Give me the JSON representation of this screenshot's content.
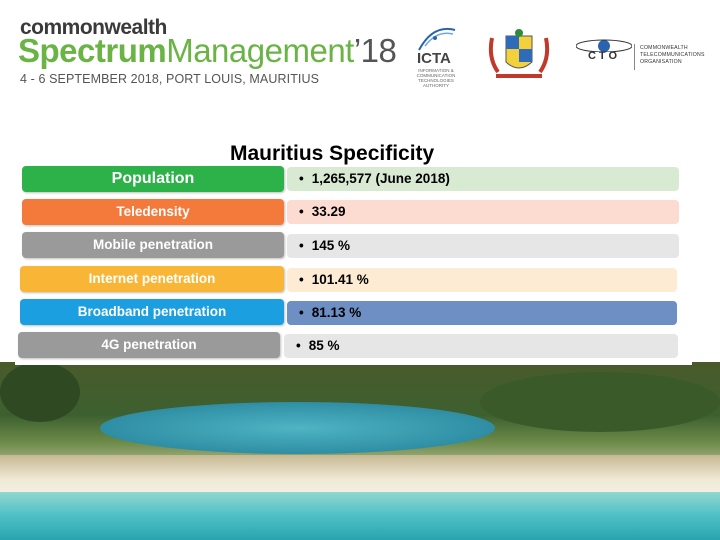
{
  "header": {
    "brand_top": "commonwealth",
    "brand_main_bold": "Spectrum",
    "brand_main_light": "Management",
    "brand_year": "’18",
    "subtitle": "4 - 6 SEPTEMBER 2018, PORT LOUIS, MAURITIUS",
    "icta_logo_text": "ICTA",
    "icta_logo_sub": "INFORMATION & COMMUNICATION TECHNOLOGIES AUTHORITY",
    "cto_logo_text": "CTO",
    "cto_name": "COMMONWEALTH TELECOMMUNICATIONS ORGANISATION"
  },
  "slide": {
    "title": "Mauritius Specificity",
    "bullet_char": "•",
    "rows": [
      {
        "label": "Population",
        "value": "1,265,577 (June 2018)",
        "label_color": "#2db24a",
        "value_bg": "#d9ead3"
      },
      {
        "label": "Teledensity",
        "value": "33.29",
        "label_color": "#f47a3c",
        "value_bg": "#fcdcd1"
      },
      {
        "label": "Mobile penetration",
        "value": "145 %",
        "label_color": "#9a9a9a",
        "value_bg": "#e6e6e6"
      },
      {
        "label": "Internet penetration",
        "value": "101.41 %",
        "label_color": "#f9b535",
        "value_bg": "#fdebd3"
      },
      {
        "label": "Broadband penetration",
        "value": "81.13 %",
        "label_color": "#1b9fe0",
        "value_bg": "#6d8fc4"
      },
      {
        "label": "4G penetration",
        "value": "85 %",
        "label_color": "#9a9a9a",
        "value_bg": "#e6e6e6"
      }
    ]
  }
}
